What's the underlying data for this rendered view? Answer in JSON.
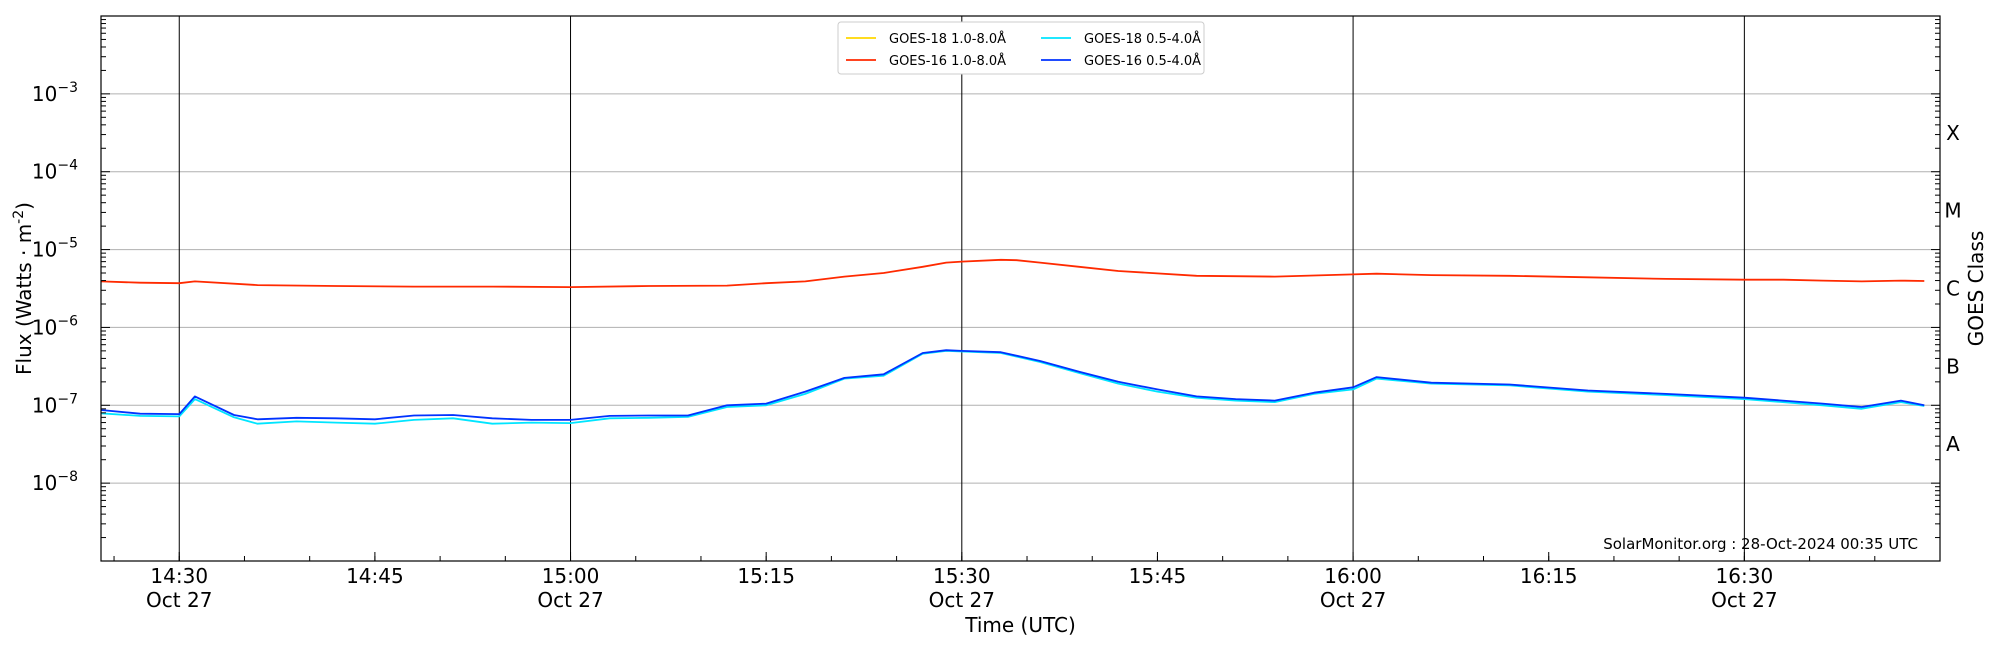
{
  "chart_data": {
    "type": "line",
    "xlabel": "Time (UTC)",
    "ylabel": "Flux (Watts · m",
    "ylabel_sup": "-2",
    "ylabel_close": ")",
    "right_label": "GOES Class",
    "credit": "SolarMonitor.org : 28-Oct-2024 00:35 UTC",
    "y_scale": "log",
    "ylim": [
      1e-09,
      0.01
    ],
    "xlim_minutes": [
      14.4,
      16.75
    ],
    "grid": "horizontal",
    "legend_position": "top-center",
    "x_ticks": [
      {
        "t": 14.5,
        "time": "14:30",
        "date": "Oct 27"
      },
      {
        "t": 14.75,
        "time": "14:45",
        "date": ""
      },
      {
        "t": 15.0,
        "time": "15:00",
        "date": "Oct 27"
      },
      {
        "t": 15.25,
        "time": "15:15",
        "date": ""
      },
      {
        "t": 15.5,
        "time": "15:30",
        "date": "Oct 27"
      },
      {
        "t": 15.75,
        "time": "15:45",
        "date": ""
      },
      {
        "t": 16.0,
        "time": "16:00",
        "date": "Oct 27"
      },
      {
        "t": 16.25,
        "time": "16:15",
        "date": ""
      },
      {
        "t": 16.5,
        "time": "16:30",
        "date": "Oct 27"
      }
    ],
    "vertical_lines": [
      14.5,
      15.0,
      15.5,
      16.0,
      16.5
    ],
    "y_ticks": [
      {
        "exp": -8,
        "label": "10"
      },
      {
        "exp": -7,
        "label": "10"
      },
      {
        "exp": -6,
        "label": "10"
      },
      {
        "exp": -5,
        "label": "10"
      },
      {
        "exp": -4,
        "label": "10"
      },
      {
        "exp": -3,
        "label": "10"
      }
    ],
    "y_tick_exponents": [
      "−8",
      "−7",
      "−6",
      "−5",
      "−4",
      "−3"
    ],
    "goes_classes": [
      {
        "label": "A",
        "exp": -7.5
      },
      {
        "label": "B",
        "exp": -6.5
      },
      {
        "label": "C",
        "exp": -5.5
      },
      {
        "label": "M",
        "exp": -4.5
      },
      {
        "label": "X",
        "exp": -3.5
      }
    ],
    "legend": [
      {
        "name": "GOES-18 1.0-8.0Å",
        "color": "#ffd700"
      },
      {
        "name": "GOES-18 0.5-4.0Å",
        "color": "#00e5ff"
      },
      {
        "name": "GOES-16 1.0-8.0Å",
        "color": "#ff2a00"
      },
      {
        "name": "GOES-16 0.5-4.0Å",
        "color": "#0033ff"
      }
    ],
    "series": [
      {
        "name": "GOES-16 1.0-8.0Å",
        "color": "#ff2a00",
        "x": [
          14.4,
          14.45,
          14.5,
          14.52,
          14.6,
          14.7,
          14.8,
          14.9,
          15.0,
          15.1,
          15.2,
          15.25,
          15.3,
          15.35,
          15.4,
          15.45,
          15.48,
          15.5,
          15.55,
          15.57,
          15.6,
          15.65,
          15.7,
          15.8,
          15.9,
          16.0,
          16.03,
          16.1,
          16.2,
          16.3,
          16.4,
          16.5,
          16.55,
          16.6,
          16.65,
          16.7,
          16.73
        ],
        "y": [
          3.9e-06,
          3.75e-06,
          3.7e-06,
          3.9e-06,
          3.5e-06,
          3.4e-06,
          3.35e-06,
          3.35e-06,
          3.3e-06,
          3.4e-06,
          3.45e-06,
          3.7e-06,
          3.9e-06,
          4.5e-06,
          5e-06,
          6e-06,
          6.8e-06,
          7e-06,
          7.4e-06,
          7.3e-06,
          6.8e-06,
          6e-06,
          5.3e-06,
          4.6e-06,
          4.5e-06,
          4.8e-06,
          4.9e-06,
          4.7e-06,
          4.6e-06,
          4.4e-06,
          4.2e-06,
          4.1e-06,
          4.1e-06,
          4e-06,
          3.9e-06,
          4e-06,
          3.95e-06
        ]
      },
      {
        "name": "GOES-18 0.5-4.0Å",
        "color": "#00e5ff",
        "x": [
          14.4,
          14.45,
          14.5,
          14.52,
          14.57,
          14.6,
          14.65,
          14.7,
          14.75,
          14.8,
          14.85,
          14.9,
          14.95,
          15.0,
          15.05,
          15.1,
          15.15,
          15.2,
          15.25,
          15.3,
          15.35,
          15.4,
          15.45,
          15.48,
          15.5,
          15.55,
          15.6,
          15.65,
          15.7,
          15.75,
          15.8,
          15.85,
          15.9,
          15.95,
          16.0,
          16.03,
          16.1,
          16.2,
          16.3,
          16.4,
          16.5,
          16.6,
          16.65,
          16.7,
          16.73
        ],
        "y": [
          7.9e-08,
          7.3e-08,
          7.2e-08,
          1.2e-07,
          7e-08,
          5.8e-08,
          6.2e-08,
          6e-08,
          5.8e-08,
          6.5e-08,
          6.8e-08,
          5.8e-08,
          6e-08,
          5.9e-08,
          6.8e-08,
          6.9e-08,
          7.1e-08,
          9.5e-08,
          1e-07,
          1.4e-07,
          2.2e-07,
          2.4e-07,
          4.6e-07,
          5e-07,
          4.9e-07,
          4.7e-07,
          3.6e-07,
          2.6e-07,
          1.9e-07,
          1.5e-07,
          1.25e-07,
          1.15e-07,
          1.1e-07,
          1.4e-07,
          1.6e-07,
          2.2e-07,
          1.9e-07,
          1.8e-07,
          1.5e-07,
          1.35e-07,
          1.2e-07,
          1e-07,
          9e-08,
          1.1e-07,
          9.8e-08
        ]
      },
      {
        "name": "GOES-16 0.5-4.0Å",
        "color": "#0033ff",
        "x": [
          14.4,
          14.45,
          14.5,
          14.52,
          14.57,
          14.6,
          14.65,
          14.7,
          14.75,
          14.8,
          14.85,
          14.9,
          14.95,
          15.0,
          15.05,
          15.1,
          15.15,
          15.2,
          15.25,
          15.3,
          15.35,
          15.4,
          15.45,
          15.48,
          15.5,
          15.55,
          15.6,
          15.65,
          15.7,
          15.75,
          15.8,
          15.85,
          15.9,
          15.95,
          16.0,
          16.03,
          16.1,
          16.2,
          16.3,
          16.4,
          16.5,
          16.6,
          16.65,
          16.7,
          16.73
        ],
        "y": [
          8.7e-08,
          7.8e-08,
          7.7e-08,
          1.3e-07,
          7.5e-08,
          6.6e-08,
          6.9e-08,
          6.8e-08,
          6.6e-08,
          7.4e-08,
          7.5e-08,
          6.8e-08,
          6.5e-08,
          6.5e-08,
          7.3e-08,
          7.4e-08,
          7.4e-08,
          1e-07,
          1.05e-07,
          1.5e-07,
          2.25e-07,
          2.5e-07,
          4.7e-07,
          5.1e-07,
          5e-07,
          4.8e-07,
          3.7e-07,
          2.7e-07,
          2e-07,
          1.6e-07,
          1.3e-07,
          1.2e-07,
          1.15e-07,
          1.45e-07,
          1.7e-07,
          2.3e-07,
          1.95e-07,
          1.85e-07,
          1.55e-07,
          1.4e-07,
          1.25e-07,
          1.05e-07,
          9.5e-08,
          1.15e-07,
          1e-07
        ]
      }
    ]
  }
}
